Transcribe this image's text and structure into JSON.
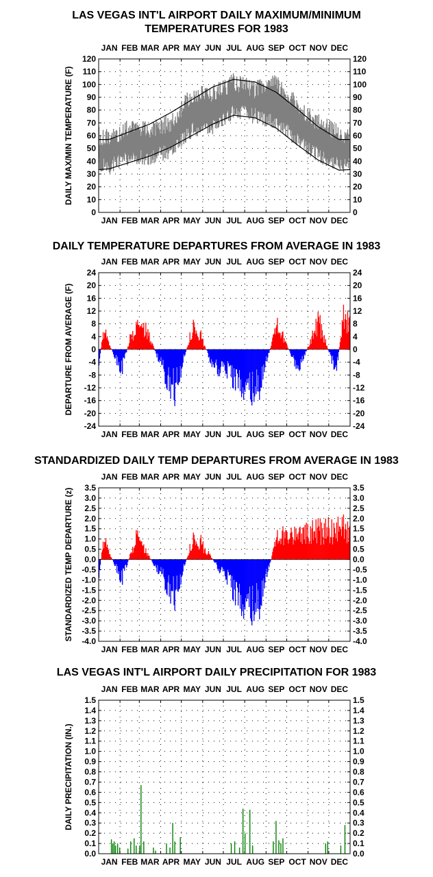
{
  "chart_data": [
    {
      "type": "line",
      "title": "LAS VEGAS INT'L AIRPORT DAILY MAXIMUM/MINIMUM TEMPERATURES FOR 1983",
      "title_lines": [
        "LAS VEGAS INT'L AIRPORT DAILY MAXIMUM/MINIMUM",
        "TEMPERATURES FOR 1983"
      ],
      "ylabel": "DAILY MAX/MIN TEMPERATURE (F)",
      "xlabel": "",
      "months": [
        "JAN",
        "FEB",
        "MAR",
        "APR",
        "MAY",
        "JUN",
        "JUL",
        "AUG",
        "SEP",
        "OCT",
        "NOV",
        "DEC"
      ],
      "ylim": [
        0,
        120
      ],
      "yticks": [
        0,
        10,
        20,
        30,
        40,
        50,
        60,
        70,
        80,
        90,
        100,
        110,
        120
      ],
      "grid": true,
      "colors": {
        "observed": "#808080",
        "normals": "#000000"
      },
      "normal_max_monthly": [
        57,
        63,
        69,
        78,
        88,
        98,
        104,
        102,
        94,
        81,
        67,
        57
      ],
      "normal_min_monthly": [
        34,
        39,
        44,
        51,
        60,
        69,
        76,
        74,
        66,
        53,
        41,
        33
      ],
      "observed_max_monthly": [
        58,
        66,
        64,
        70,
        92,
        93,
        102,
        96,
        101,
        84,
        70,
        62
      ],
      "observed_min_monthly": [
        36,
        43,
        43,
        48,
        64,
        66,
        79,
        76,
        70,
        57,
        45,
        37
      ]
    },
    {
      "type": "bar",
      "title": "DAILY TEMPERATURE DEPARTURES FROM AVERAGE IN 1983",
      "ylabel": "DEPARTURE FROM AVERAGE (F)",
      "xlabel": "",
      "months": [
        "JAN",
        "FEB",
        "MAR",
        "APR",
        "MAY",
        "JUN",
        "JUL",
        "AUG",
        "SEP",
        "OCT",
        "NOV",
        "DEC"
      ],
      "ylim": [
        -24,
        24
      ],
      "yticks": [
        24,
        20,
        16,
        12,
        8,
        4,
        0,
        -4,
        -8,
        -12,
        -16,
        -20,
        -24
      ],
      "grid": true,
      "colors": {
        "positive": "#ff0000",
        "negative": "#0000ff"
      },
      "key_days": [
        {
          "day": 1,
          "value": -5
        },
        {
          "day": 8,
          "value": 8
        },
        {
          "day": 25,
          "value": -4
        },
        {
          "day": 34,
          "value": -9
        },
        {
          "day": 48,
          "value": 7
        },
        {
          "day": 55,
          "value": 9
        },
        {
          "day": 70,
          "value": 8
        },
        {
          "day": 96,
          "value": -10
        },
        {
          "day": 111,
          "value": -17
        },
        {
          "day": 140,
          "value": 12
        },
        {
          "day": 165,
          "value": -6
        },
        {
          "day": 203,
          "value": -13
        },
        {
          "day": 232,
          "value": -18
        },
        {
          "day": 260,
          "value": 11
        },
        {
          "day": 290,
          "value": -9
        },
        {
          "day": 320,
          "value": 12
        },
        {
          "day": 345,
          "value": -10
        },
        {
          "day": 356,
          "value": 14
        }
      ]
    },
    {
      "type": "bar",
      "title": "STANDARDIZED DAILY TEMP DEPARTURES FROM AVERAGE IN 1983",
      "ylabel": "STANDARDIZED TEMP DEPARTURE (z)",
      "xlabel": "",
      "months": [
        "JAN",
        "FEB",
        "MAR",
        "APR",
        "MAY",
        "JUN",
        "JUL",
        "AUG",
        "SEP",
        "OCT",
        "NOV",
        "DEC"
      ],
      "ylim": [
        -4.0,
        3.5
      ],
      "yticks": [
        "3.5",
        "3.0",
        "2.5",
        "2.0",
        "1.5",
        "1.0",
        "0.5",
        "0.0",
        "-0.5",
        "-1.0",
        "-1.5",
        "-2.0",
        "-2.5",
        "-3.0",
        "-3.5",
        "-4.0"
      ],
      "grid": true,
      "colors": {
        "positive": "#ff0000",
        "negative": "#0000ff"
      },
      "key_days": [
        {
          "day": 1,
          "value": -0.9
        },
        {
          "day": 8,
          "value": 1.3
        },
        {
          "day": 34,
          "value": -1.4
        },
        {
          "day": 55,
          "value": 1.5
        },
        {
          "day": 111,
          "value": -2.4
        },
        {
          "day": 140,
          "value": 1.7
        },
        {
          "day": 203,
          "value": -2.4
        },
        {
          "day": 232,
          "value": -3.3
        },
        {
          "day": 260,
          "value": 1.6
        },
        {
          "day": 320,
          "value": 1.9
        },
        {
          "day": 356,
          "value": 2.2
        }
      ]
    },
    {
      "type": "bar",
      "title": "LAS VEGAS INT'L AIRPORT DAILY PRECIPITATION FOR 1983",
      "ylabel": "DAILY PRECIPITATION (IN.)",
      "xlabel": "",
      "months": [
        "JAN",
        "FEB",
        "MAR",
        "APR",
        "MAY",
        "JUN",
        "JUL",
        "AUG",
        "SEP",
        "OCT",
        "NOV",
        "DEC"
      ],
      "ylim": [
        0.0,
        1.5
      ],
      "yticks": [
        "1.5",
        "1.4",
        "1.3",
        "1.2",
        "1.1",
        "1.0",
        "0.9",
        "0.8",
        "0.7",
        "0.6",
        "0.5",
        "0.4",
        "0.3",
        "0.2",
        "0.1",
        "0.0"
      ],
      "grid": true,
      "colors": {
        "bars": "#008000"
      },
      "precip_days": [
        {
          "day": 19,
          "value": 0.14
        },
        {
          "day": 21,
          "value": 0.1
        },
        {
          "day": 23,
          "value": 0.12
        },
        {
          "day": 25,
          "value": 0.08
        },
        {
          "day": 28,
          "value": 0.1
        },
        {
          "day": 31,
          "value": 0.06
        },
        {
          "day": 43,
          "value": 0.05
        },
        {
          "day": 47,
          "value": 0.12
        },
        {
          "day": 52,
          "value": 0.15
        },
        {
          "day": 55,
          "value": 0.08
        },
        {
          "day": 60,
          "value": 0.08
        },
        {
          "day": 62,
          "value": 0.67
        },
        {
          "day": 66,
          "value": 0.12
        },
        {
          "day": 80,
          "value": 0.06
        },
        {
          "day": 83,
          "value": 0.03
        },
        {
          "day": 99,
          "value": 0.1
        },
        {
          "day": 104,
          "value": 0.06
        },
        {
          "day": 108,
          "value": 0.3
        },
        {
          "day": 111,
          "value": 0.12
        },
        {
          "day": 119,
          "value": 0.16
        },
        {
          "day": 193,
          "value": 0.1
        },
        {
          "day": 198,
          "value": 0.12
        },
        {
          "day": 205,
          "value": 0.06
        },
        {
          "day": 210,
          "value": 0.44
        },
        {
          "day": 213,
          "value": 0.2
        },
        {
          "day": 220,
          "value": 0.43
        },
        {
          "day": 224,
          "value": 0.08
        },
        {
          "day": 254,
          "value": 0.12
        },
        {
          "day": 258,
          "value": 0.32
        },
        {
          "day": 262,
          "value": 0.13
        },
        {
          "day": 265,
          "value": 0.1
        },
        {
          "day": 268,
          "value": 0.15
        },
        {
          "day": 330,
          "value": 0.1
        },
        {
          "day": 333,
          "value": 0.12
        },
        {
          "day": 352,
          "value": 0.08
        },
        {
          "day": 358,
          "value": 0.28
        }
      ]
    }
  ]
}
